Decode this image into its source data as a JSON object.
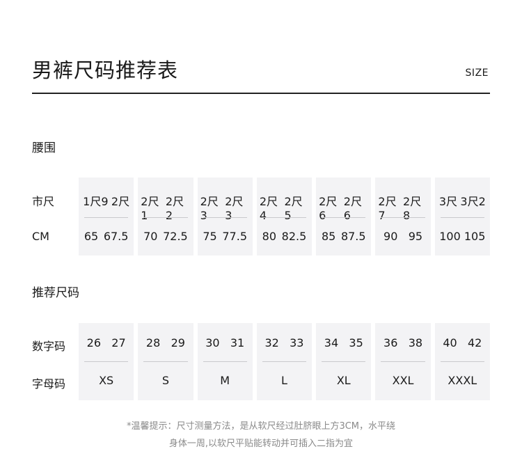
{
  "header": {
    "title": "男裤尺码推荐表",
    "size_label": "SIZE"
  },
  "waist": {
    "section_title": "腰围",
    "row_labels": [
      "市尺",
      "CM"
    ],
    "columns": [
      {
        "shichi": [
          "1尺9",
          "2尺"
        ],
        "cm": [
          "65",
          "67.5"
        ]
      },
      {
        "shichi": [
          "2尺1",
          "2尺2"
        ],
        "cm": [
          "70",
          "72.5"
        ]
      },
      {
        "shichi": [
          "2尺3",
          "2尺3"
        ],
        "cm": [
          "75",
          "77.5"
        ]
      },
      {
        "shichi": [
          "2尺4",
          "2尺5"
        ],
        "cm": [
          "80",
          "82.5"
        ]
      },
      {
        "shichi": [
          "2尺6",
          "2尺6"
        ],
        "cm": [
          "85",
          "87.5"
        ]
      },
      {
        "shichi": [
          "2尺7",
          "2尺8"
        ],
        "cm": [
          "90",
          "95"
        ]
      },
      {
        "shichi": [
          "3尺",
          "3尺2"
        ],
        "cm": [
          "100",
          "105"
        ]
      }
    ]
  },
  "recommend": {
    "section_title": "推荐尺码",
    "row_labels": [
      "数字码",
      "字母码"
    ],
    "columns": [
      {
        "numbers": [
          "26",
          "27"
        ],
        "letter": "XS"
      },
      {
        "numbers": [
          "28",
          "29"
        ],
        "letter": "S"
      },
      {
        "numbers": [
          "30",
          "31"
        ],
        "letter": "M"
      },
      {
        "numbers": [
          "32",
          "33"
        ],
        "letter": "L"
      },
      {
        "numbers": [
          "34",
          "35"
        ],
        "letter": "XL"
      },
      {
        "numbers": [
          "36",
          "38"
        ],
        "letter": "XXL"
      },
      {
        "numbers": [
          "40",
          "42"
        ],
        "letter": "XXXL"
      }
    ]
  },
  "note": {
    "line1": "*温馨提示：尺寸测量方法，是从软尺经过肚脐眼上方3CM，水平绕",
    "line2": "身体一周,以软尺平贴能转动并可插入二指为宜"
  }
}
